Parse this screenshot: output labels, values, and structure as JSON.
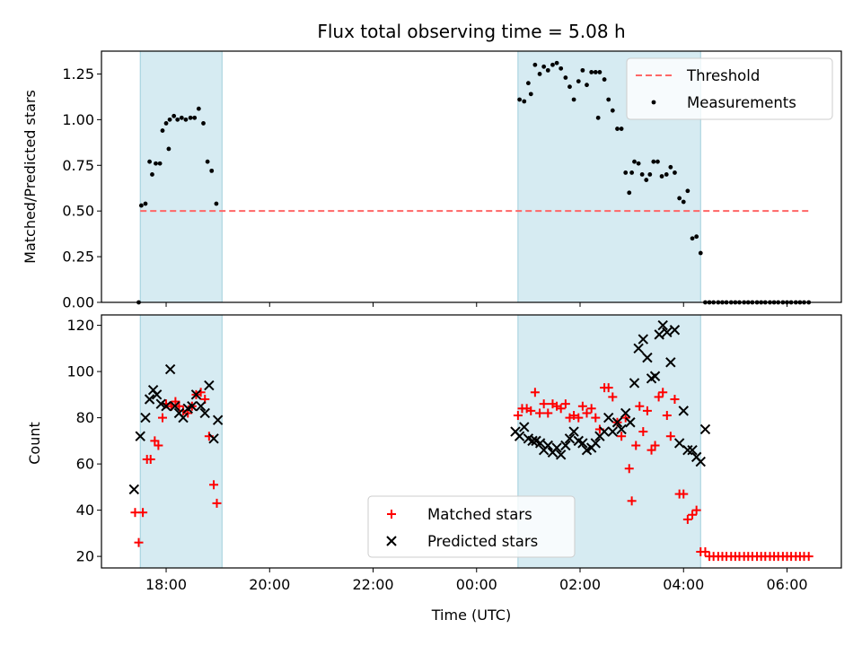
{
  "chart_data": [
    {
      "type": "scatter",
      "title": "Flux total observing time = 5.08 h",
      "xlabel": "",
      "ylabel": "Matched/Predicted stars",
      "ylim": [
        0,
        1.375
      ],
      "yticks": [
        "0.00",
        "0.25",
        "0.50",
        "0.75",
        "1.00",
        "1.25"
      ],
      "xlim": [
        16.75,
        31.05
      ],
      "shaded_spans": [
        [
          17.5,
          19.08
        ],
        [
          24.8,
          28.33
        ]
      ],
      "threshold": {
        "name": "Threshold",
        "y": 0.5,
        "x": [
          17.5,
          30.45
        ],
        "color": "#ff6666"
      },
      "series": [
        {
          "name": "Measurements",
          "color": "#000000",
          "points": [
            [
              17.47,
              0.0
            ],
            [
              17.52,
              0.53
            ],
            [
              17.6,
              0.54
            ],
            [
              17.68,
              0.77
            ],
            [
              17.73,
              0.7
            ],
            [
              17.8,
              0.76
            ],
            [
              17.88,
              0.76
            ],
            [
              17.93,
              0.94
            ],
            [
              18.0,
              0.98
            ],
            [
              18.05,
              0.84
            ],
            [
              18.07,
              1.0
            ],
            [
              18.15,
              1.02
            ],
            [
              18.22,
              1.0
            ],
            [
              18.3,
              1.01
            ],
            [
              18.38,
              1.0
            ],
            [
              18.47,
              1.01
            ],
            [
              18.55,
              1.01
            ],
            [
              18.63,
              1.06
            ],
            [
              18.72,
              0.98
            ],
            [
              18.8,
              0.77
            ],
            [
              18.88,
              0.72
            ],
            [
              18.97,
              0.54
            ],
            [
              24.83,
              1.11
            ],
            [
              24.92,
              1.1
            ],
            [
              25.0,
              1.2
            ],
            [
              25.05,
              1.14
            ],
            [
              25.13,
              1.3
            ],
            [
              25.22,
              1.25
            ],
            [
              25.3,
              1.29
            ],
            [
              25.38,
              1.27
            ],
            [
              25.47,
              1.3
            ],
            [
              25.55,
              1.31
            ],
            [
              25.63,
              1.28
            ],
            [
              25.72,
              1.23
            ],
            [
              25.8,
              1.18
            ],
            [
              25.88,
              1.11
            ],
            [
              25.97,
              1.21
            ],
            [
              26.05,
              1.27
            ],
            [
              26.13,
              1.19
            ],
            [
              26.22,
              1.26
            ],
            [
              26.3,
              1.26
            ],
            [
              26.35,
              1.01
            ],
            [
              26.38,
              1.26
            ],
            [
              26.47,
              1.22
            ],
            [
              26.55,
              1.11
            ],
            [
              26.63,
              1.05
            ],
            [
              26.72,
              0.95
            ],
            [
              26.8,
              0.95
            ],
            [
              26.88,
              0.71
            ],
            [
              26.95,
              0.6
            ],
            [
              27.0,
              0.71
            ],
            [
              27.05,
              0.77
            ],
            [
              27.13,
              0.76
            ],
            [
              27.2,
              0.7
            ],
            [
              27.28,
              0.67
            ],
            [
              27.35,
              0.7
            ],
            [
              27.42,
              0.77
            ],
            [
              27.5,
              0.77
            ],
            [
              27.58,
              0.69
            ],
            [
              27.67,
              0.7
            ],
            [
              27.75,
              0.74
            ],
            [
              27.83,
              0.71
            ],
            [
              27.92,
              0.57
            ],
            [
              28.0,
              0.55
            ],
            [
              28.08,
              0.61
            ],
            [
              28.17,
              0.35
            ],
            [
              28.25,
              0.36
            ],
            [
              28.33,
              0.27
            ],
            [
              28.42,
              0.0
            ],
            [
              28.5,
              0.0
            ],
            [
              28.58,
              0.0
            ],
            [
              28.67,
              0.0
            ],
            [
              28.75,
              0.0
            ],
            [
              28.83,
              0.0
            ],
            [
              28.92,
              0.0
            ],
            [
              29.0,
              0.0
            ],
            [
              29.08,
              0.0
            ],
            [
              29.17,
              0.0
            ],
            [
              29.25,
              0.0
            ],
            [
              29.33,
              0.0
            ],
            [
              29.42,
              0.0
            ],
            [
              29.5,
              0.0
            ],
            [
              29.58,
              0.0
            ],
            [
              29.67,
              0.0
            ],
            [
              29.75,
              0.0
            ],
            [
              29.83,
              0.0
            ],
            [
              29.92,
              0.0
            ],
            [
              30.0,
              0.0
            ],
            [
              30.08,
              0.0
            ],
            [
              30.17,
              0.0
            ],
            [
              30.25,
              0.0
            ],
            [
              30.33,
              0.0
            ],
            [
              30.42,
              0.0
            ]
          ]
        }
      ],
      "legend_placement": "upper right"
    },
    {
      "type": "scatter",
      "title": "",
      "xlabel": "Time (UTC)",
      "ylabel": "Count",
      "ylim": [
        15,
        124.5
      ],
      "yticks": [
        "20",
        "40",
        "60",
        "80",
        "100",
        "120"
      ],
      "xlim": [
        16.75,
        31.05
      ],
      "xticks": [
        {
          "value": 18,
          "label": "18:00"
        },
        {
          "value": 20,
          "label": "20:00"
        },
        {
          "value": 22,
          "label": "22:00"
        },
        {
          "value": 24,
          "label": "00:00"
        },
        {
          "value": 26,
          "label": "02:00"
        },
        {
          "value": 28,
          "label": "04:00"
        },
        {
          "value": 30,
          "label": "06:00"
        }
      ],
      "shaded_spans": [
        [
          17.5,
          19.08
        ],
        [
          24.8,
          28.33
        ]
      ],
      "series": [
        {
          "name": "Matched stars",
          "marker": "plus",
          "color": "#ff0000",
          "points": [
            [
              17.4,
              39
            ],
            [
              17.47,
              26
            ],
            [
              17.55,
              39
            ],
            [
              17.63,
              62
            ],
            [
              17.7,
              62
            ],
            [
              17.78,
              70
            ],
            [
              17.85,
              68
            ],
            [
              17.93,
              80
            ],
            [
              18.0,
              86
            ],
            [
              18.1,
              85
            ],
            [
              18.18,
              87
            ],
            [
              18.25,
              85
            ],
            [
              18.33,
              83
            ],
            [
              18.42,
              82
            ],
            [
              18.5,
              85
            ],
            [
              18.58,
              90
            ],
            [
              18.67,
              91
            ],
            [
              18.75,
              88
            ],
            [
              18.83,
              72
            ],
            [
              18.92,
              51
            ],
            [
              18.98,
              43
            ],
            [
              24.8,
              81
            ],
            [
              24.88,
              84
            ],
            [
              24.97,
              84
            ],
            [
              25.05,
              83
            ],
            [
              25.13,
              91
            ],
            [
              25.22,
              82
            ],
            [
              25.3,
              86
            ],
            [
              25.38,
              82
            ],
            [
              25.47,
              86
            ],
            [
              25.55,
              85
            ],
            [
              25.63,
              84
            ],
            [
              25.72,
              86
            ],
            [
              25.8,
              80
            ],
            [
              25.88,
              81
            ],
            [
              25.97,
              80
            ],
            [
              26.05,
              85
            ],
            [
              26.13,
              82
            ],
            [
              26.22,
              84
            ],
            [
              26.3,
              80
            ],
            [
              26.38,
              75
            ],
            [
              26.47,
              93
            ],
            [
              26.55,
              93
            ],
            [
              26.63,
              89
            ],
            [
              26.72,
              78
            ],
            [
              26.8,
              72
            ],
            [
              26.88,
              80
            ],
            [
              26.95,
              58
            ],
            [
              27.0,
              44
            ],
            [
              27.08,
              68
            ],
            [
              27.15,
              85
            ],
            [
              27.22,
              74
            ],
            [
              27.3,
              83
            ],
            [
              27.38,
              66
            ],
            [
              27.45,
              68
            ],
            [
              27.52,
              89
            ],
            [
              27.6,
              91
            ],
            [
              27.68,
              81
            ],
            [
              27.75,
              72
            ],
            [
              27.83,
              88
            ],
            [
              27.92,
              47
            ],
            [
              28.0,
              47
            ],
            [
              28.08,
              36
            ],
            [
              28.17,
              38
            ],
            [
              28.25,
              40
            ],
            [
              28.33,
              22
            ],
            [
              28.42,
              22
            ],
            [
              28.5,
              20
            ],
            [
              28.58,
              20
            ],
            [
              28.67,
              20
            ],
            [
              28.75,
              20
            ],
            [
              28.83,
              20
            ],
            [
              28.92,
              20
            ],
            [
              29.0,
              20
            ],
            [
              29.08,
              20
            ],
            [
              29.17,
              20
            ],
            [
              29.25,
              20
            ],
            [
              29.33,
              20
            ],
            [
              29.42,
              20
            ],
            [
              29.5,
              20
            ],
            [
              29.58,
              20
            ],
            [
              29.67,
              20
            ],
            [
              29.75,
              20
            ],
            [
              29.83,
              20
            ],
            [
              29.92,
              20
            ],
            [
              30.0,
              20
            ],
            [
              30.08,
              20
            ],
            [
              30.17,
              20
            ],
            [
              30.25,
              20
            ],
            [
              30.33,
              20
            ],
            [
              30.42,
              20
            ]
          ]
        },
        {
          "name": "Predicted stars",
          "marker": "x",
          "color": "#000000",
          "points": [
            [
              17.38,
              49
            ],
            [
              17.5,
              72
            ],
            [
              17.6,
              80
            ],
            [
              17.68,
              88
            ],
            [
              17.75,
              92
            ],
            [
              17.82,
              90
            ],
            [
              17.9,
              86
            ],
            [
              18.0,
              85
            ],
            [
              18.08,
              101
            ],
            [
              18.17,
              85
            ],
            [
              18.25,
              82
            ],
            [
              18.33,
              80
            ],
            [
              18.42,
              84
            ],
            [
              18.5,
              85
            ],
            [
              18.58,
              90
            ],
            [
              18.67,
              85
            ],
            [
              18.75,
              82
            ],
            [
              18.83,
              94
            ],
            [
              18.92,
              71
            ],
            [
              19.0,
              79
            ],
            [
              24.75,
              74
            ],
            [
              24.83,
              72
            ],
            [
              24.92,
              76
            ],
            [
              25.0,
              71
            ],
            [
              25.08,
              70
            ],
            [
              25.15,
              70
            ],
            [
              25.23,
              69
            ],
            [
              25.3,
              66
            ],
            [
              25.38,
              68
            ],
            [
              25.47,
              65
            ],
            [
              25.55,
              67
            ],
            [
              25.63,
              64
            ],
            [
              25.72,
              68
            ],
            [
              25.8,
              71
            ],
            [
              25.88,
              74
            ],
            [
              25.97,
              70
            ],
            [
              26.05,
              69
            ],
            [
              26.13,
              66
            ],
            [
              26.22,
              67
            ],
            [
              26.3,
              69
            ],
            [
              26.38,
              72
            ],
            [
              26.47,
              74
            ],
            [
              26.55,
              80
            ],
            [
              26.63,
              74
            ],
            [
              26.72,
              78
            ],
            [
              26.8,
              75
            ],
            [
              26.88,
              82
            ],
            [
              26.97,
              78
            ],
            [
              27.05,
              95
            ],
            [
              27.13,
              110
            ],
            [
              27.22,
              114
            ],
            [
              27.3,
              106
            ],
            [
              27.38,
              97
            ],
            [
              27.45,
              98
            ],
            [
              27.53,
              116
            ],
            [
              27.6,
              120
            ],
            [
              27.68,
              117
            ],
            [
              27.75,
              104
            ],
            [
              27.83,
              118
            ],
            [
              27.92,
              69
            ],
            [
              28.0,
              83
            ],
            [
              28.08,
              66
            ],
            [
              28.17,
              66
            ],
            [
              28.25,
              63
            ],
            [
              28.33,
              61
            ],
            [
              28.42,
              75
            ]
          ]
        }
      ],
      "legend_placement": "lower center"
    }
  ]
}
